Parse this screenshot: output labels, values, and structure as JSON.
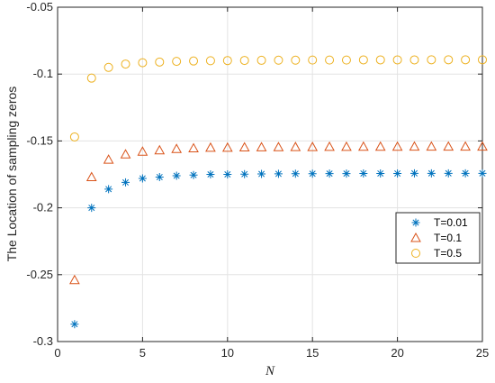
{
  "chart_data": {
    "type": "scatter",
    "title": "",
    "xlabel": "N",
    "ylabel": "The Location of sampling zeros",
    "xlim": [
      0,
      25
    ],
    "ylim": [
      -0.3,
      -0.05
    ],
    "xticks": [
      0,
      5,
      10,
      15,
      20,
      25
    ],
    "yticks": [
      -0.3,
      -0.25,
      -0.2,
      -0.15,
      -0.1,
      -0.05
    ],
    "xtick_labels": [
      "0",
      "5",
      "10",
      "15",
      "20",
      "25"
    ],
    "ytick_labels": [
      "-0.3",
      "-0.25",
      "-0.2",
      "-0.15",
      "-0.1",
      "-0.05"
    ],
    "grid": true,
    "legend_position": "right",
    "x": [
      1,
      2,
      3,
      4,
      5,
      6,
      7,
      8,
      9,
      10,
      11,
      12,
      13,
      14,
      15,
      16,
      17,
      18,
      19,
      20,
      21,
      22,
      23,
      24,
      25
    ],
    "series": [
      {
        "name": "T=0.01",
        "marker": "asterisk",
        "color": "#0072BD",
        "values": [
          -0.287,
          -0.2,
          -0.186,
          -0.181,
          -0.178,
          -0.177,
          -0.176,
          -0.1755,
          -0.175,
          -0.175,
          -0.1748,
          -0.1747,
          -0.1746,
          -0.1745,
          -0.1745,
          -0.1744,
          -0.1744,
          -0.1743,
          -0.1743,
          -0.1743,
          -0.1742,
          -0.1742,
          -0.1742,
          -0.1742,
          -0.1742
        ]
      },
      {
        "name": "T=0.1",
        "marker": "triangle",
        "color": "#D95319",
        "values": [
          -0.254,
          -0.177,
          -0.164,
          -0.16,
          -0.158,
          -0.157,
          -0.156,
          -0.1555,
          -0.155,
          -0.155,
          -0.1548,
          -0.1547,
          -0.1546,
          -0.1545,
          -0.1545,
          -0.1544,
          -0.1544,
          -0.1543,
          -0.1543,
          -0.1543,
          -0.1542,
          -0.1542,
          -0.1542,
          -0.1542,
          -0.1542
        ]
      },
      {
        "name": "T=0.5",
        "marker": "circle",
        "color": "#EDB120",
        "values": [
          -0.147,
          -0.103,
          -0.095,
          -0.0925,
          -0.0915,
          -0.091,
          -0.0905,
          -0.0902,
          -0.09,
          -0.0899,
          -0.0898,
          -0.0897,
          -0.0896,
          -0.0896,
          -0.0895,
          -0.0895,
          -0.0895,
          -0.0894,
          -0.0894,
          -0.0894,
          -0.0894,
          -0.0893,
          -0.0893,
          -0.0893,
          -0.0893
        ]
      }
    ]
  }
}
